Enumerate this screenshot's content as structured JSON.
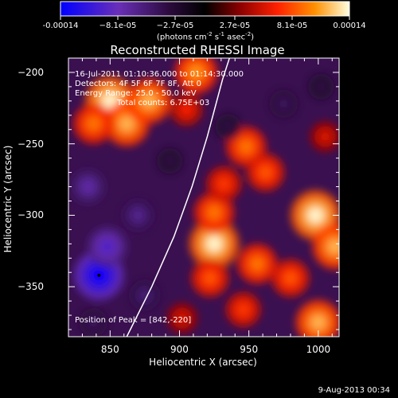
{
  "colorbar": {
    "tick_labels": [
      "-0.00014",
      "−8.1e-05",
      "−2.7e-05",
      "2.7e-05",
      "8.1e-05",
      "0.00014"
    ],
    "units_main": "(photons cm",
    "units_sup1": "-2",
    "units_mid": " s",
    "units_sup2": "-1",
    "units_end": " asec",
    "units_sup3": "-2",
    "units_close": ")"
  },
  "chart_data": {
    "type": "heatmap",
    "title": "Reconstructed RHESSI Image",
    "xlabel": "Heliocentric X (arcsec)",
    "ylabel": "Heliocentric Y (arcsec)",
    "xlim": [
      820,
      1015
    ],
    "ylim": [
      -385,
      -190
    ],
    "x_ticks": [
      850,
      900,
      950,
      1000
    ],
    "x_tick_labels": [
      "850",
      "900",
      "950",
      "1000"
    ],
    "y_ticks": [
      -200,
      -250,
      -300,
      -350
    ],
    "y_tick_labels": [
      "−200",
      "−250",
      "−300",
      "−350"
    ],
    "colormap": [
      "#0000ff",
      "#6a2fb8",
      "#2a0a3a",
      "#000000",
      "#8a0000",
      "#ff2000",
      "#ff9000",
      "#ffffe0"
    ],
    "color_range": [
      -0.00014,
      0.00014
    ],
    "annotations": [
      "16-Jul-2011 01:10:36.000 to 01:14:30.000",
      "Detectors: 4F 5F 6F 7F 8F, Att 0",
      "Energy Range: 25.0 - 50.0 keV",
      "Total counts: 6.75E+03"
    ],
    "peak_label": "Position of Peak = [842,-220]",
    "blobs": [
      {
        "x": 850,
        "y": -220,
        "v": 0.00014
      },
      {
        "x": 862,
        "y": -236,
        "v": 0.00012
      },
      {
        "x": 878,
        "y": -220,
        "v": 0.00012
      },
      {
        "x": 838,
        "y": -236,
        "v": 0.0001
      },
      {
        "x": 912,
        "y": -200,
        "v": 0.00011
      },
      {
        "x": 905,
        "y": -226,
        "v": 7e-05
      },
      {
        "x": 925,
        "y": -320,
        "v": 0.00014
      },
      {
        "x": 925,
        "y": -298,
        "v": 0.0001
      },
      {
        "x": 922,
        "y": -344,
        "v": 9e-05
      },
      {
        "x": 948,
        "y": -252,
        "v": 0.0001
      },
      {
        "x": 962,
        "y": -270,
        "v": 9e-05
      },
      {
        "x": 998,
        "y": -300,
        "v": 0.00014
      },
      {
        "x": 1012,
        "y": -322,
        "v": 0.00012
      },
      {
        "x": 980,
        "y": -344,
        "v": 9e-05
      },
      {
        "x": 956,
        "y": -334,
        "v": 0.0001
      },
      {
        "x": 946,
        "y": -366,
        "v": 8e-05
      },
      {
        "x": 1000,
        "y": -375,
        "v": 0.00012
      },
      {
        "x": 902,
        "y": -372,
        "v": 6e-05
      },
      {
        "x": 932,
        "y": -278,
        "v": 8e-05
      },
      {
        "x": 1005,
        "y": -245,
        "v": 6e-05
      },
      {
        "x": 842,
        "y": -342,
        "v": -0.00014
      },
      {
        "x": 848,
        "y": -322,
        "v": -0.0001
      },
      {
        "x": 834,
        "y": -280,
        "v": -8e-05
      },
      {
        "x": 870,
        "y": -300,
        "v": -7e-05
      },
      {
        "x": 875,
        "y": -356,
        "v": -6e-05
      },
      {
        "x": 838,
        "y": -375,
        "v": -5e-05
      },
      {
        "x": 935,
        "y": -238,
        "v": -4e-05
      },
      {
        "x": 975,
        "y": -222,
        "v": -5e-05
      },
      {
        "x": 1002,
        "y": -210,
        "v": -4e-05
      },
      {
        "x": 893,
        "y": -262,
        "v": -4e-05
      }
    ],
    "limb_arc": [
      [
        862,
        -385
      ],
      [
        880,
        -350
      ],
      [
        896,
        -315
      ],
      [
        909,
        -280
      ],
      [
        920,
        -245
      ],
      [
        931,
        -205
      ],
      [
        936,
        -190
      ]
    ],
    "peak_position": [
      842,
      -220
    ]
  },
  "footer": {
    "date": "9-Aug-2013 00:34"
  },
  "colors": {
    "background": "#000000",
    "text": "#ffffff",
    "limb_line": "#ffffff"
  }
}
